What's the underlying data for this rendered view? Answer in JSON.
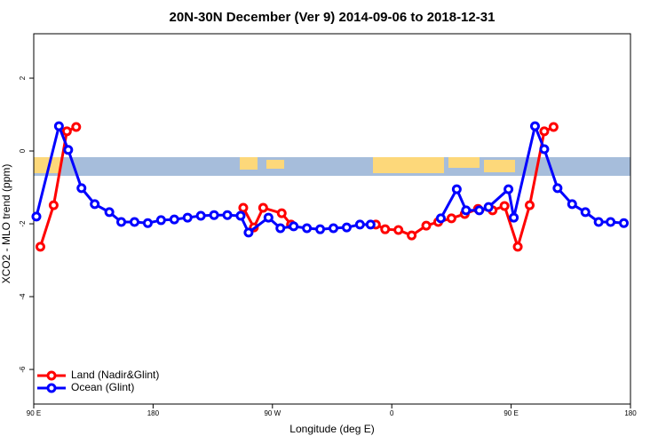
{
  "chart_data": {
    "type": "line",
    "title": "20N-30N December (Ver 9)   2014-09-06 to 2018-12-31",
    "xlabel": "Longitude (deg E)",
    "ylabel": "XCO2 - MLO trend (ppm)",
    "xlim": [
      90,
      540
    ],
    "ylim": [
      -6.95,
      3.22
    ],
    "xticks": [
      {
        "value": 90,
        "label": "90 E"
      },
      180,
      {
        "value": 270,
        "label": "90 W"
      },
      {
        "value": 360,
        "label": "0"
      },
      {
        "value": 450,
        "label": "90 E"
      },
      {
        "value": 540,
        "label": "180"
      }
    ],
    "yticks": [
      2,
      0,
      -2,
      -4,
      -6
    ],
    "legend": "bottom-left",
    "series": [
      {
        "name": "Land (Nadir&Glint)",
        "color": "#ff0000",
        "x": [
          95,
          105,
          115,
          122,
          null,
          248,
          256,
          263,
          277,
          284,
          null,
          348,
          355,
          365,
          375,
          386,
          395,
          405,
          415,
          425,
          436,
          445,
          455,
          464,
          475,
          482
        ],
        "values": [
          -2.63,
          -1.49,
          0.54,
          0.66,
          null,
          -1.56,
          -2.1,
          -1.56,
          -1.71,
          -2.02,
          null,
          -2.02,
          -2.15,
          -2.17,
          -2.32,
          -2.05,
          -1.95,
          -1.85,
          -1.73,
          -1.59,
          -1.63,
          -1.51,
          -2.63,
          -1.49,
          0.54,
          0.66
        ]
      },
      {
        "name": "Ocean (Glint)",
        "color": "#0000ff",
        "x": [
          92,
          109,
          116,
          126,
          136,
          147,
          156,
          166,
          176,
          186,
          196,
          206,
          216,
          226,
          236,
          246,
          252,
          267,
          276,
          286,
          296,
          306,
          316,
          326,
          336,
          344,
          null,
          397,
          409,
          416,
          426,
          433,
          448,
          452,
          468,
          475,
          485,
          496,
          506,
          516,
          525,
          535
        ],
        "values": [
          -1.8,
          0.68,
          0.03,
          -1.02,
          -1.46,
          -1.68,
          -1.95,
          -1.95,
          -1.98,
          -1.9,
          -1.88,
          -1.83,
          -1.78,
          -1.76,
          -1.76,
          -1.78,
          -2.24,
          -1.83,
          -2.12,
          -2.07,
          -2.12,
          -2.15,
          -2.12,
          -2.1,
          -2.02,
          -2.02,
          null,
          -1.85,
          -1.05,
          -1.63,
          -1.63,
          -1.54,
          -1.05,
          -1.83,
          0.68,
          0.05,
          -1.02,
          -1.46,
          -1.68,
          -1.95,
          -1.95,
          -1.98
        ]
      }
    ]
  }
}
